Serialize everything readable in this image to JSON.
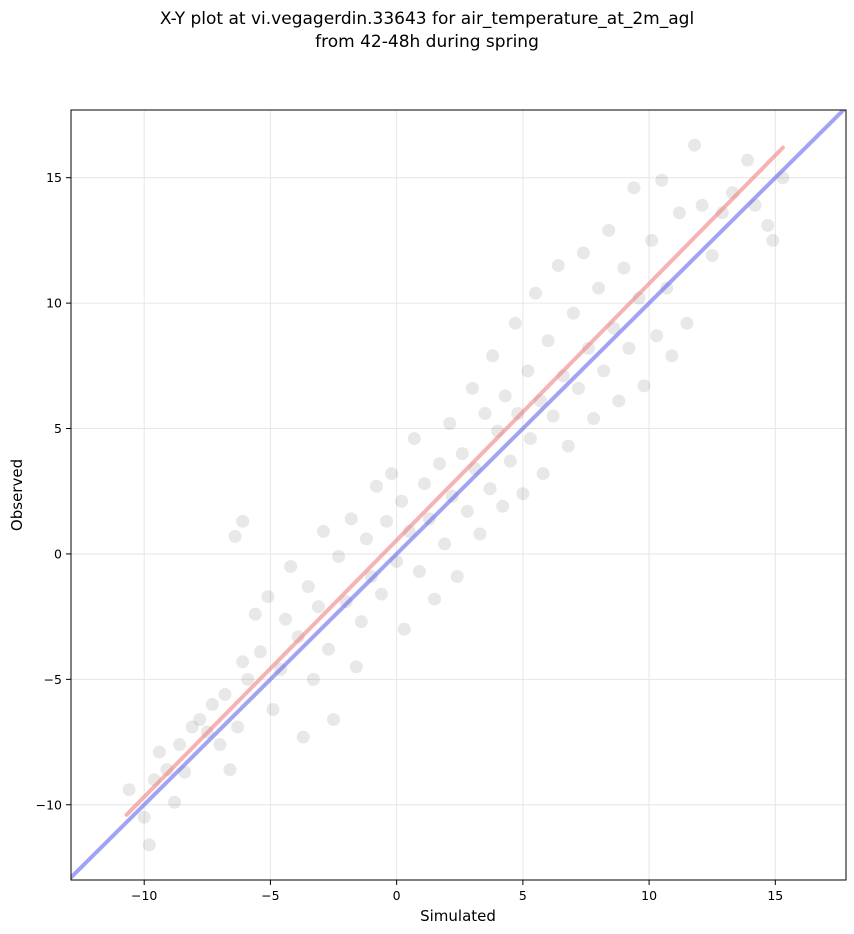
{
  "chart_data": {
    "type": "scatter",
    "title_line1": "X-Y plot at vi.vegagerdin.33643 for air_temperature_at_2m_agl",
    "title_line2": "from 42-48h during spring",
    "xlabel": "Simulated",
    "ylabel": "Observed",
    "xlim": [
      -12.9,
      17.8
    ],
    "ylim": [
      -13.0,
      17.7
    ],
    "xticks": [
      -10,
      -5,
      0,
      5,
      10,
      15
    ],
    "yticks": [
      -10,
      -5,
      0,
      5,
      10,
      15
    ],
    "xtick_labels": [
      "−10",
      "−5",
      "0",
      "5",
      "10",
      "15"
    ],
    "ytick_labels": [
      "−10",
      "−5",
      "0",
      "5",
      "10",
      "15"
    ],
    "grid": true,
    "point_color": "#000000",
    "point_alpha": 0.09,
    "points": [
      [
        -10.6,
        -9.4
      ],
      [
        -10.0,
        -10.5
      ],
      [
        -9.8,
        -11.6
      ],
      [
        -9.6,
        -9.0
      ],
      [
        -9.4,
        -7.9
      ],
      [
        -9.1,
        -8.6
      ],
      [
        -8.8,
        -9.9
      ],
      [
        -8.6,
        -7.6
      ],
      [
        -8.4,
        -8.7
      ],
      [
        -8.1,
        -6.9
      ],
      [
        -7.8,
        -6.6
      ],
      [
        -7.5,
        -7.1
      ],
      [
        -7.3,
        -6.0
      ],
      [
        -7.0,
        -7.6
      ],
      [
        -6.8,
        -5.6
      ],
      [
        -6.6,
        -8.6
      ],
      [
        -6.3,
        -6.9
      ],
      [
        -6.1,
        -4.3
      ],
      [
        -5.9,
        -5.0
      ],
      [
        -6.4,
        0.7
      ],
      [
        -6.1,
        1.3
      ],
      [
        -5.6,
        -2.4
      ],
      [
        -5.4,
        -3.9
      ],
      [
        -5.1,
        -1.7
      ],
      [
        -4.9,
        -6.2
      ],
      [
        -4.6,
        -4.6
      ],
      [
        -4.4,
        -2.6
      ],
      [
        -4.2,
        -0.5
      ],
      [
        -3.9,
        -3.3
      ],
      [
        -3.7,
        -7.3
      ],
      [
        -3.5,
        -1.3
      ],
      [
        -3.3,
        -5.0
      ],
      [
        -3.1,
        -2.1
      ],
      [
        -2.9,
        0.9
      ],
      [
        -2.7,
        -3.8
      ],
      [
        -2.5,
        -6.6
      ],
      [
        -2.3,
        -0.1
      ],
      [
        -2.0,
        -1.9
      ],
      [
        -1.8,
        1.4
      ],
      [
        -1.6,
        -4.5
      ],
      [
        -1.4,
        -2.7
      ],
      [
        -1.2,
        0.6
      ],
      [
        -1.0,
        -0.9
      ],
      [
        -0.8,
        2.7
      ],
      [
        -0.6,
        -1.6
      ],
      [
        -0.4,
        1.3
      ],
      [
        -0.2,
        3.2
      ],
      [
        0.0,
        -0.3
      ],
      [
        0.2,
        2.1
      ],
      [
        0.3,
        -3.0
      ],
      [
        0.5,
        0.9
      ],
      [
        0.7,
        4.6
      ],
      [
        0.9,
        -0.7
      ],
      [
        1.1,
        2.8
      ],
      [
        1.3,
        1.4
      ],
      [
        1.5,
        -1.8
      ],
      [
        1.7,
        3.6
      ],
      [
        1.9,
        0.4
      ],
      [
        2.1,
        5.2
      ],
      [
        2.2,
        2.3
      ],
      [
        2.4,
        -0.9
      ],
      [
        2.6,
        4.0
      ],
      [
        2.8,
        1.7
      ],
      [
        3.0,
        6.6
      ],
      [
        3.1,
        3.4
      ],
      [
        3.3,
        0.8
      ],
      [
        3.5,
        5.6
      ],
      [
        3.7,
        2.6
      ],
      [
        3.8,
        7.9
      ],
      [
        4.0,
        4.9
      ],
      [
        4.2,
        1.9
      ],
      [
        4.3,
        6.3
      ],
      [
        4.5,
        3.7
      ],
      [
        4.7,
        9.2
      ],
      [
        4.8,
        5.6
      ],
      [
        5.0,
        2.4
      ],
      [
        5.2,
        7.3
      ],
      [
        5.3,
        4.6
      ],
      [
        5.5,
        10.4
      ],
      [
        5.7,
        6.1
      ],
      [
        5.8,
        3.2
      ],
      [
        6.0,
        8.5
      ],
      [
        6.2,
        5.5
      ],
      [
        6.4,
        11.5
      ],
      [
        6.6,
        7.1
      ],
      [
        6.8,
        4.3
      ],
      [
        7.0,
        9.6
      ],
      [
        7.2,
        6.6
      ],
      [
        7.4,
        12.0
      ],
      [
        7.6,
        8.2
      ],
      [
        7.8,
        5.4
      ],
      [
        8.0,
        10.6
      ],
      [
        8.2,
        7.3
      ],
      [
        8.4,
        12.9
      ],
      [
        8.6,
        9.0
      ],
      [
        8.8,
        6.1
      ],
      [
        9.0,
        11.4
      ],
      [
        9.2,
        8.2
      ],
      [
        9.4,
        14.6
      ],
      [
        9.6,
        10.2
      ],
      [
        9.8,
        6.7
      ],
      [
        10.1,
        12.5
      ],
      [
        10.3,
        8.7
      ],
      [
        10.5,
        14.9
      ],
      [
        10.7,
        10.6
      ],
      [
        10.9,
        7.9
      ],
      [
        11.2,
        13.6
      ],
      [
        11.5,
        9.2
      ],
      [
        11.8,
        16.3
      ],
      [
        12.1,
        13.9
      ],
      [
        12.5,
        11.9
      ],
      [
        12.9,
        13.6
      ],
      [
        13.3,
        14.4
      ],
      [
        13.9,
        15.7
      ],
      [
        14.2,
        13.9
      ],
      [
        14.7,
        13.1
      ],
      [
        14.9,
        12.5
      ],
      [
        15.3,
        15.0
      ]
    ],
    "series": [
      {
        "kind": "fit-line",
        "color": "#f08080",
        "x": [
          -10.7,
          15.3
        ],
        "y": [
          -10.4,
          16.2
        ]
      },
      {
        "kind": "identity-line",
        "color": "#6666ee",
        "x": [
          -12.9,
          17.8
        ],
        "y": [
          -12.9,
          17.8
        ]
      }
    ]
  }
}
